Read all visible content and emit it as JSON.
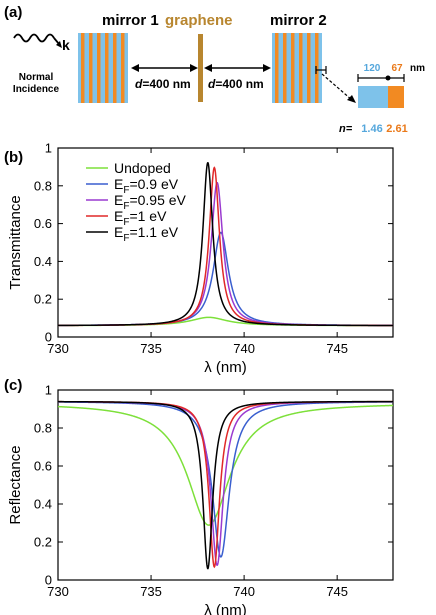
{
  "panel_a": {
    "label": "(a)",
    "mirror1_label": "mirror 1",
    "graphene_label": "graphene",
    "mirror2_label": "mirror 2",
    "wave_k": "k",
    "incidence_line1": "Normal",
    "incidence_line2": "Incidence",
    "gap1_prefix": "d",
    "gap1_value": "=400 nm",
    "gap2_prefix": "d",
    "gap2_value": "=400 nm",
    "inset_w1": "120",
    "inset_w2": "67",
    "inset_unit": "nm",
    "inset_n_label": "n=",
    "inset_n1": "1.46",
    "inset_n2": "2.61",
    "colors": {
      "blue": "#7ec2ea",
      "orange": "#f28a22",
      "graphene": "#b8862f",
      "n1": "#55a7dc",
      "n2": "#ea7a1b"
    }
  },
  "chart_data": [
    {
      "panel_label": "(b)",
      "type": "line",
      "xlabel": "λ (nm)",
      "ylabel": "Transmittance",
      "xlim": [
        730,
        748
      ],
      "ylim": [
        0,
        1
      ],
      "xticks": [
        "730",
        "735",
        "740",
        "745"
      ],
      "yticks": [
        "0",
        "0.2",
        "0.4",
        "0.6",
        "0.8",
        "1"
      ],
      "grid": false,
      "legend": "top-left",
      "series": [
        {
          "name": "Undoped",
          "color": "#7de03a",
          "peak_x": 738.1,
          "peak_y": 0.05,
          "width": 1.2
        },
        {
          "name": "EF=0.9 eV",
          "color": "#3a5fcf",
          "peak_x": 738.75,
          "peak_y": 0.56,
          "width": 0.5
        },
        {
          "name": "EF=0.95 eV",
          "color": "#9a3ad0",
          "peak_x": 738.55,
          "peak_y": 0.86,
          "width": 0.38
        },
        {
          "name": "EF=1 eV",
          "color": "#e02828",
          "peak_x": 738.4,
          "peak_y": 0.95,
          "width": 0.33
        },
        {
          "name": "EF=1.1 eV",
          "color": "#000000",
          "peak_x": 738.05,
          "peak_y": 0.98,
          "width": 0.32
        }
      ]
    },
    {
      "panel_label": "(c)",
      "type": "line",
      "xlabel": "λ (nm)",
      "ylabel": "Reflectance",
      "xlim": [
        730,
        748
      ],
      "ylim": [
        0,
        1
      ],
      "xticks": [
        "730",
        "735",
        "740",
        "745"
      ],
      "yticks": [
        "0",
        "0.2",
        "0.4",
        "0.6",
        "0.8",
        "1"
      ],
      "grid": false,
      "series": [
        {
          "name": "Undoped",
          "color": "#7de03a",
          "dip_x": 738.1,
          "depth": 0.73,
          "base": 0.99,
          "width": 1.4
        },
        {
          "name": "EF=0.9 eV",
          "color": "#3a5fcf",
          "dip_x": 738.75,
          "depth": 0.93,
          "base": 1.0,
          "width": 0.55
        },
        {
          "name": "EF=0.95 eV",
          "color": "#9a3ad0",
          "dip_x": 738.55,
          "depth": 0.98,
          "base": 1.0,
          "width": 0.4
        },
        {
          "name": "EF=1 eV",
          "color": "#e02828",
          "dip_x": 738.4,
          "depth": 0.99,
          "base": 1.0,
          "width": 0.34
        },
        {
          "name": "EF=1.1 eV",
          "color": "#000000",
          "dip_x": 738.05,
          "depth": 1.0,
          "base": 1.0,
          "width": 0.32
        }
      ]
    }
  ]
}
